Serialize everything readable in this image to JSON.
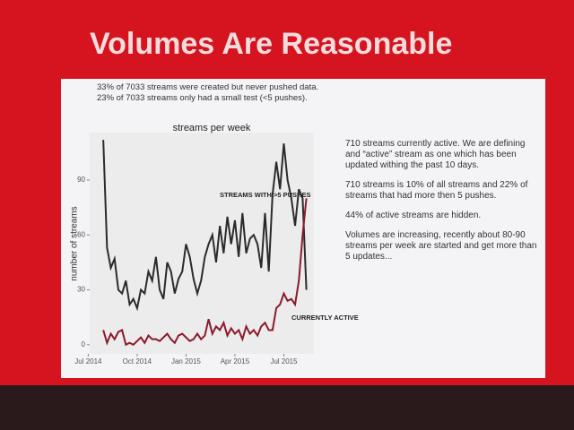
{
  "slide_title": "Volumes Are Reasonable",
  "notes": [
    "33% of 7033 streams were created but never pushed data.",
    "23% of 7033 streams only had a small test (<5 pushes)."
  ],
  "side_text": [
    "710 streams currently active. We are defining and “active” stream as one which has been updated withing the past 10 days.",
    "710 streams is 10% of all streams and 22% of streams that had more then 5 pushes.",
    "44% of active streams are hidden.",
    "Volumes are increasing, recently about 80-90 streams per week are started and get more than 5 updates..."
  ],
  "chart_data": {
    "type": "line",
    "title": "streams per week",
    "y_label": "number of streams",
    "x": [
      4,
      5,
      6,
      7,
      8,
      9,
      10,
      11,
      12,
      13,
      14,
      15,
      16,
      17,
      18,
      19,
      20,
      21,
      22,
      23,
      24,
      25,
      26,
      27,
      28,
      29,
      30,
      31,
      32,
      33,
      34,
      35,
      36,
      37,
      38,
      39,
      40,
      41,
      42,
      43,
      44,
      45,
      46,
      47,
      48,
      49,
      50,
      51,
      52,
      53,
      54,
      55,
      56,
      57,
      58
    ],
    "series": [
      {
        "name": "STREAMS WITH >5 PUSHES",
        "color": "#2b2b2b",
        "values": [
          112,
          53,
          42,
          47,
          30,
          28,
          35,
          22,
          25,
          20,
          30,
          28,
          40,
          35,
          48,
          30,
          25,
          45,
          40,
          28,
          36,
          40,
          55,
          48,
          36,
          28,
          35,
          48,
          55,
          60,
          45,
          65,
          50,
          70,
          55,
          68,
          48,
          72,
          50,
          58,
          60,
          55,
          42,
          72,
          40,
          82,
          100,
          85,
          110,
          90,
          80,
          65,
          85,
          80,
          30
        ]
      },
      {
        "name": "CURRENTLY ACTIVE",
        "color": "#8b1a2b",
        "values": [
          8,
          1,
          6,
          3,
          7,
          8,
          0,
          1,
          0,
          2,
          4,
          1,
          5,
          3,
          3,
          2,
          4,
          6,
          3,
          1,
          5,
          6,
          4,
          2,
          3,
          6,
          3,
          5,
          14,
          6,
          10,
          8,
          12,
          5,
          9,
          6,
          8,
          3,
          10,
          6,
          8,
          5,
          10,
          12,
          8,
          8,
          20,
          22,
          28,
          24,
          25,
          22,
          35,
          60,
          80
        ]
      }
    ],
    "xlim": [
      -2,
      60
    ],
    "xticks": [
      {
        "value": 0,
        "label": "Jul 2014"
      },
      {
        "value": 13,
        "label": "Oct 2014"
      },
      {
        "value": 26,
        "label": "Jan 2015"
      },
      {
        "value": 39,
        "label": "Apr 2015"
      },
      {
        "value": 52,
        "label": "Jul 2015"
      }
    ],
    "ylim": [
      -5,
      115
    ],
    "yticks": [
      0,
      30,
      60,
      90
    ]
  }
}
